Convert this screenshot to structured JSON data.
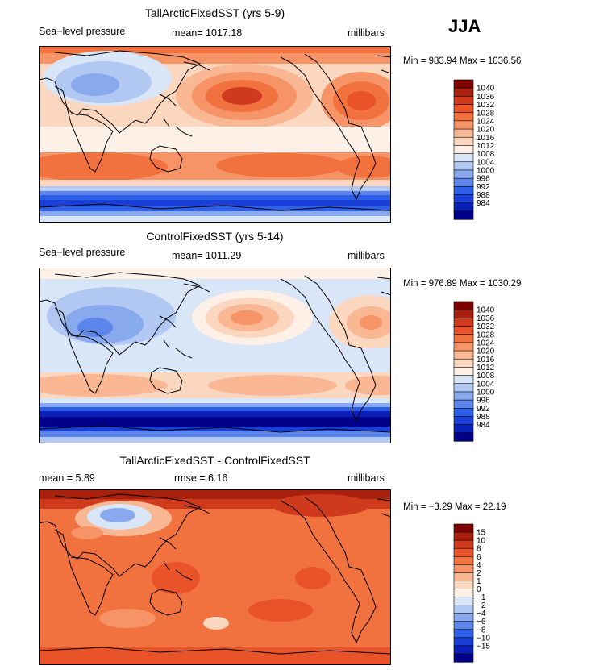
{
  "season": "JJA",
  "colors": {
    "pressure_scale": [
      "#00008b",
      "#0a1fb8",
      "#1a3fd8",
      "#2e5fe8",
      "#5d86ec",
      "#89a9ef",
      "#b1c8f2",
      "#d9e6f8",
      "#fdf0e6",
      "#fcd7c0",
      "#f9b793",
      "#f69468",
      "#f1713f",
      "#e8532a",
      "#d03a1c",
      "#a9200d",
      "#7f0000"
    ],
    "diff_scale": [
      "#00008b",
      "#0a1fb8",
      "#1a3fd8",
      "#2e5fe8",
      "#5d86ec",
      "#89a9ef",
      "#b1c8f2",
      "#d9e6f8",
      "#fdf0e6",
      "#fcd7c0",
      "#f9b793",
      "#f69468",
      "#f1713f",
      "#e8532a",
      "#d03a1c",
      "#a9200d",
      "#7f0000"
    ]
  },
  "panels": [
    {
      "title": "TallArcticFixedSST (yrs 5-9)",
      "left_label": "Sea−level pressure",
      "center_label": "mean=  1017.18",
      "units": "millibars",
      "minmax": "Min = 983.94  Max = 1036.56",
      "colorbar_labels": [
        "1040",
        "1036",
        "1032",
        "1028",
        "1024",
        "1020",
        "1016",
        "1012",
        "1008",
        "1004",
        "1000",
        "996",
        "992",
        "988",
        "984"
      ]
    },
    {
      "title": "ControlFixedSST (yrs 5-14)",
      "left_label": "Sea−level pressure",
      "center_label": "mean=  1011.29",
      "units": "millibars",
      "minmax": "Min = 976.89  Max = 1030.29",
      "colorbar_labels": [
        "1040",
        "1036",
        "1032",
        "1028",
        "1024",
        "1020",
        "1016",
        "1012",
        "1008",
        "1004",
        "1000",
        "996",
        "992",
        "988",
        "984"
      ]
    },
    {
      "title": "TallArcticFixedSST - ControlFixedSST",
      "left_label": "mean =     5.89",
      "center_label": "rmse =     6.16",
      "units": "millibars",
      "minmax": "Min =   −3.29  Max =   22.19",
      "colorbar_labels": [
        "15",
        "10",
        "8",
        "6",
        "4",
        "2",
        "1",
        "0",
        "−1",
        "−2",
        "−4",
        "−6",
        "−8",
        "−10",
        "−15"
      ]
    }
  ]
}
